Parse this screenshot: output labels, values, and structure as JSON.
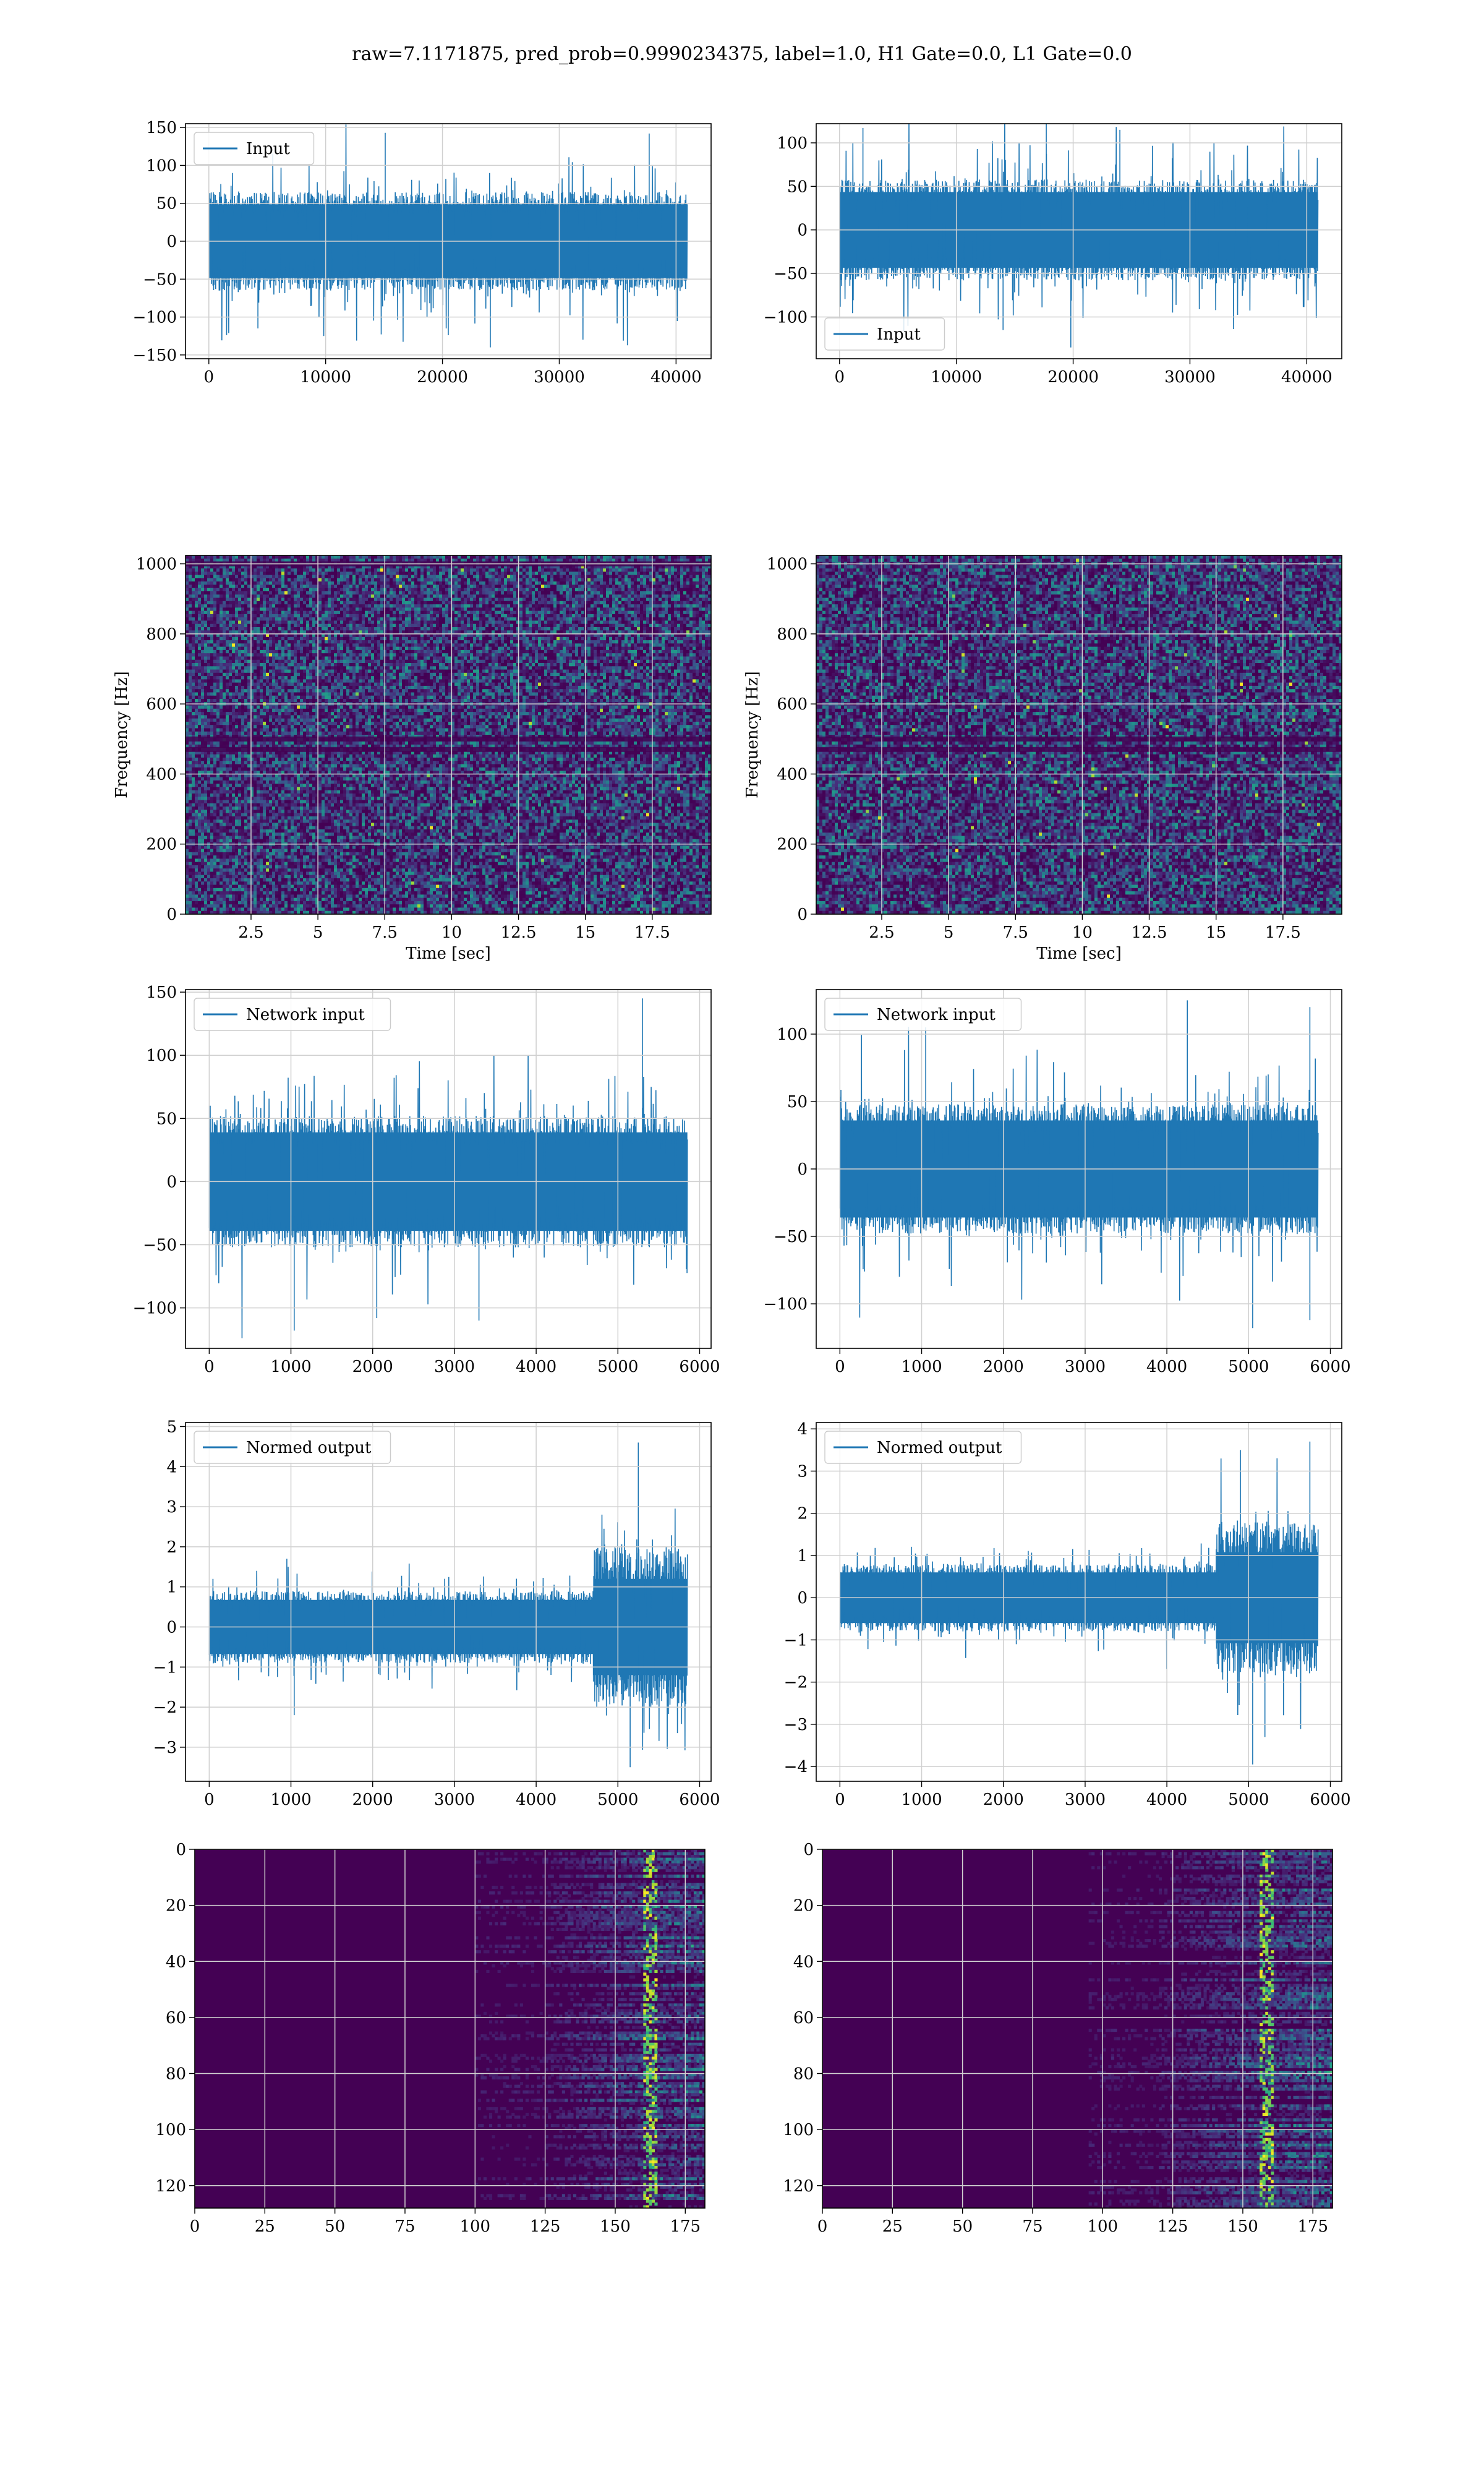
{
  "figure": {
    "suptitle": "raw=7.1171875, pred_prob=0.9990234375, label=1.0, H1 Gate=0.0, L1 Gate=0.0",
    "colors": {
      "line": "#1f77b4",
      "grid": "#d0d0d0",
      "viridis": [
        "#440154",
        "#472d7b",
        "#3b528b",
        "#2c728e",
        "#21918c",
        "#28ae80",
        "#5ec962",
        "#addc30",
        "#fde725"
      ]
    }
  },
  "chart_data": [
    {
      "id": "p1",
      "type": "line",
      "title": "",
      "legend": "Input",
      "legend_loc": "upper-left",
      "xlabel": "",
      "ylabel": "",
      "xlim": [
        -2000,
        43000
      ],
      "ylim": [
        -155,
        155
      ],
      "xticks": [
        0,
        10000,
        20000,
        30000,
        40000
      ],
      "yticks": [
        -150,
        -100,
        -50,
        0,
        50,
        100,
        150
      ],
      "x_range": [
        0,
        40960
      ],
      "band": [
        -65,
        65
      ],
      "spread": 60,
      "peaks": [
        {
          "x": 15100,
          "y": 143
        },
        {
          "x": 37700,
          "y": 142
        },
        {
          "x": 24100,
          "y": -140
        },
        {
          "x": 20500,
          "y": -124
        },
        {
          "x": 4200,
          "y": -115
        }
      ]
    },
    {
      "id": "p2",
      "type": "line",
      "title": "",
      "legend": "Input",
      "legend_loc": "lower-left",
      "xlabel": "",
      "ylabel": "",
      "xlim": [
        -2000,
        43000
      ],
      "ylim": [
        -148,
        122
      ],
      "xticks": [
        0,
        10000,
        20000,
        30000,
        40000
      ],
      "yticks": [
        -100,
        -50,
        0,
        50,
        100
      ],
      "x_range": [
        0,
        40960
      ],
      "band": [
        -58,
        58
      ],
      "spread": 55,
      "peaks": [
        {
          "x": 2000,
          "y": 117
        },
        {
          "x": 17700,
          "y": 123
        },
        {
          "x": 19800,
          "y": -135
        },
        {
          "x": 24000,
          "y": 115
        },
        {
          "x": 14000,
          "y": -115
        }
      ]
    },
    {
      "id": "p3",
      "type": "heatmap",
      "title": "",
      "legend": "",
      "xlabel": "Time [sec]",
      "ylabel": "Frequency [Hz]",
      "xlim": [
        0.05,
        19.7
      ],
      "ylim": [
        0,
        1024
      ],
      "xticks": [
        2.5,
        5.0,
        7.5,
        10.0,
        12.5,
        15.0,
        17.5
      ],
      "yticks": [
        0,
        200,
        400,
        600,
        800,
        1000
      ],
      "stripes": [
        1000,
        500,
        470
      ],
      "seed": 11
    },
    {
      "id": "p4",
      "type": "heatmap",
      "title": "",
      "legend": "",
      "xlabel": "Time [sec]",
      "ylabel": "Frequency [Hz]",
      "xlim": [
        0.05,
        19.7
      ],
      "ylim": [
        0,
        1024
      ],
      "xticks": [
        2.5,
        5.0,
        7.5,
        10.0,
        12.5,
        15.0,
        17.5
      ],
      "yticks": [
        0,
        200,
        400,
        600,
        800,
        1000
      ],
      "stripes": [
        500,
        470
      ],
      "seed": 29
    },
    {
      "id": "p5",
      "type": "line",
      "title": "",
      "legend": "Network input",
      "legend_loc": "upper-left",
      "xlabel": "",
      "ylabel": "",
      "xlim": [
        -290,
        6140
      ],
      "ylim": [
        -132,
        152
      ],
      "xticks": [
        0,
        1000,
        2000,
        3000,
        4000,
        5000,
        6000
      ],
      "yticks": [
        -100,
        -50,
        0,
        50,
        100,
        150
      ],
      "x_range": [
        0,
        5850
      ],
      "band": [
        -52,
        52
      ],
      "spread": 40,
      "peaks": [
        {
          "x": 5300,
          "y": 145
        },
        {
          "x": 1040,
          "y": -118
        },
        {
          "x": 2050,
          "y": -108
        },
        {
          "x": 3300,
          "y": -110
        }
      ]
    },
    {
      "id": "p6",
      "type": "line",
      "title": "",
      "legend": "Network input",
      "legend_loc": "upper-left",
      "xlabel": "",
      "ylabel": "",
      "xlim": [
        -290,
        6140
      ],
      "ylim": [
        -133,
        133
      ],
      "xticks": [
        0,
        1000,
        2000,
        3000,
        4000,
        5000,
        6000
      ],
      "yticks": [
        -100,
        -50,
        0,
        50,
        100
      ],
      "x_range": [
        0,
        5850
      ],
      "band": [
        -48,
        48
      ],
      "spread": 40,
      "peaks": [
        {
          "x": 4250,
          "y": 125
        },
        {
          "x": 5750,
          "y": 120
        },
        {
          "x": 5050,
          "y": -118
        },
        {
          "x": 5750,
          "y": -112
        },
        {
          "x": 1050,
          "y": 105
        }
      ]
    },
    {
      "id": "p7",
      "type": "line",
      "title": "",
      "legend": "Normed output",
      "legend_loc": "upper-left",
      "xlabel": "",
      "ylabel": "",
      "xlim": [
        -290,
        6140
      ],
      "ylim": [
        -3.85,
        5.1
      ],
      "xticks": [
        0,
        1000,
        2000,
        3000,
        4000,
        5000,
        6000
      ],
      "yticks": [
        -3,
        -2,
        -1,
        0,
        1,
        2,
        3,
        4,
        5
      ],
      "x_range": [
        0,
        5850
      ],
      "band": [
        -0.9,
        0.9
      ],
      "spread": 0.6,
      "burst": {
        "from": 4700,
        "to": 5850,
        "band": [
          -2.0,
          2.0
        ]
      },
      "peaks": [
        {
          "x": 5250,
          "y": 4.6
        },
        {
          "x": 5150,
          "y": -3.5
        },
        {
          "x": 1040,
          "y": -2.2
        },
        {
          "x": 950,
          "y": 1.7
        }
      ]
    },
    {
      "id": "p8",
      "type": "line",
      "title": "",
      "legend": "Normed output",
      "legend_loc": "upper-left",
      "xlabel": "",
      "ylabel": "",
      "xlim": [
        -290,
        6140
      ],
      "ylim": [
        -4.35,
        4.15
      ],
      "xticks": [
        0,
        1000,
        2000,
        3000,
        4000,
        5000,
        6000
      ],
      "yticks": [
        -4,
        -3,
        -2,
        -1,
        0,
        1,
        2,
        3,
        4
      ],
      "x_range": [
        0,
        5850
      ],
      "band": [
        -0.8,
        0.8
      ],
      "spread": 0.6,
      "burst": {
        "from": 4600,
        "to": 5850,
        "band": [
          -1.8,
          1.8
        ]
      },
      "peaks": [
        {
          "x": 5050,
          "y": -3.95
        },
        {
          "x": 5750,
          "y": 3.7
        },
        {
          "x": 4900,
          "y": 3.5
        },
        {
          "x": 5200,
          "y": -3.3
        }
      ]
    },
    {
      "id": "p9",
      "type": "heatmap",
      "title": "",
      "legend": "",
      "xlabel": "",
      "ylabel": "",
      "xlim": [
        0,
        182
      ],
      "ylim": [
        128,
        0
      ],
      "xticks": [
        0,
        25,
        50,
        75,
        100,
        125,
        150,
        175
      ],
      "yticks": [
        0,
        20,
        40,
        60,
        80,
        100,
        120
      ],
      "activation_from": 125,
      "hot_col": 162,
      "seed": 5
    },
    {
      "id": "p10",
      "type": "heatmap",
      "title": "",
      "legend": "",
      "xlabel": "",
      "ylabel": "",
      "xlim": [
        0,
        182
      ],
      "ylim": [
        128,
        0
      ],
      "xticks": [
        0,
        25,
        50,
        75,
        100,
        125,
        150,
        175
      ],
      "yticks": [
        0,
        20,
        40,
        60,
        80,
        100,
        120
      ],
      "activation_from": 120,
      "hot_col": 158,
      "seed": 17
    }
  ]
}
